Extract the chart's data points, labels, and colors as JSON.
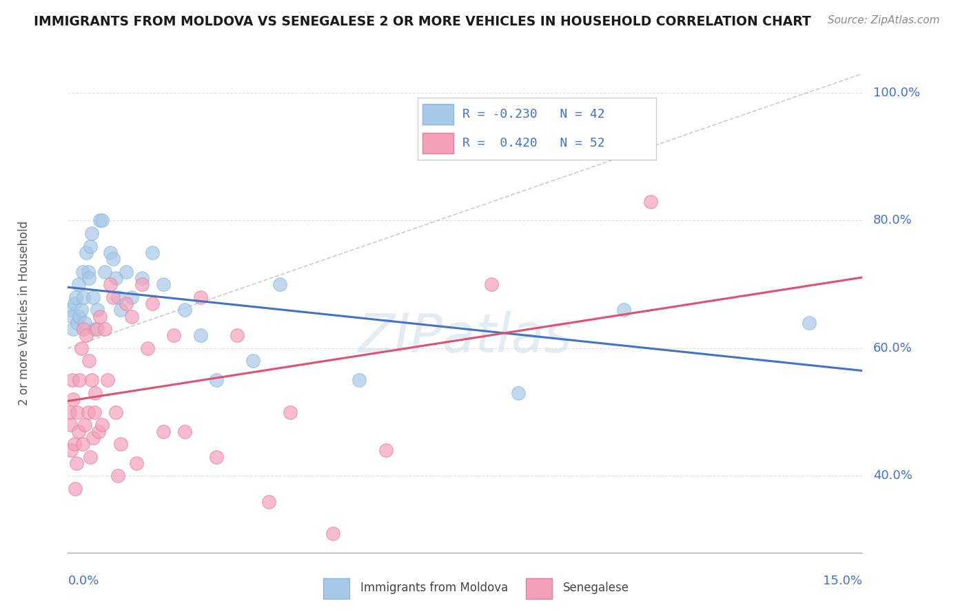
{
  "title": "IMMIGRANTS FROM MOLDOVA VS SENEGALESE 2 OR MORE VEHICLES IN HOUSEHOLD CORRELATION CHART",
  "source": "Source: ZipAtlas.com",
  "ylabel": "2 or more Vehicles in Household",
  "xlim": [
    0.0,
    15.0
  ],
  "ylim": [
    28.0,
    103.0
  ],
  "yticks_pct": [
    40.0,
    60.0,
    80.0,
    100.0
  ],
  "watermark_text": "ZIPatlas",
  "blue_R": -0.23,
  "blue_N": 42,
  "pink_R": 0.42,
  "pink_N": 52,
  "blue_scatter_color": "#a8c8e8",
  "blue_line_color": "#4472c4",
  "pink_scatter_color": "#f4a0b8",
  "pink_line_color": "#e05070",
  "ref_line_color": "#c8c8c8",
  "grid_color": "#e0e0e0",
  "axis_color": "#4472c4",
  "title_color": "#1a1a1a",
  "source_color": "#888888",
  "ylabel_color": "#555555",
  "blue_x": [
    0.05,
    0.08,
    0.1,
    0.12,
    0.15,
    0.18,
    0.2,
    0.22,
    0.25,
    0.28,
    0.3,
    0.32,
    0.35,
    0.38,
    0.4,
    0.42,
    0.45,
    0.48,
    0.5,
    0.55,
    0.6,
    0.65,
    0.7,
    0.8,
    0.85,
    0.9,
    0.95,
    1.0,
    1.1,
    1.2,
    1.4,
    1.6,
    1.8,
    2.2,
    2.5,
    2.8,
    3.5,
    4.0,
    5.5,
    8.5,
    10.5,
    14.0
  ],
  "blue_y": [
    66,
    65,
    63,
    67,
    68,
    64,
    70,
    65,
    66,
    72,
    68,
    64,
    75,
    72,
    71,
    76,
    78,
    68,
    63,
    66,
    80,
    80,
    72,
    75,
    74,
    71,
    68,
    66,
    72,
    68,
    71,
    75,
    70,
    66,
    62,
    55,
    58,
    70,
    55,
    53,
    66,
    64
  ],
  "pink_x": [
    0.03,
    0.05,
    0.06,
    0.08,
    0.1,
    0.12,
    0.14,
    0.16,
    0.18,
    0.2,
    0.22,
    0.25,
    0.28,
    0.3,
    0.32,
    0.35,
    0.38,
    0.4,
    0.42,
    0.45,
    0.48,
    0.5,
    0.52,
    0.55,
    0.58,
    0.6,
    0.65,
    0.7,
    0.75,
    0.8,
    0.85,
    0.9,
    0.95,
    1.0,
    1.1,
    1.2,
    1.3,
    1.4,
    1.5,
    1.6,
    1.8,
    2.0,
    2.2,
    2.5,
    2.8,
    3.2,
    3.8,
    4.2,
    5.0,
    6.0,
    8.0,
    11.0
  ],
  "pink_y": [
    50,
    48,
    44,
    55,
    52,
    45,
    38,
    42,
    50,
    47,
    55,
    60,
    45,
    63,
    48,
    62,
    50,
    58,
    43,
    55,
    46,
    50,
    53,
    63,
    47,
    65,
    48,
    63,
    55,
    70,
    68,
    50,
    40,
    45,
    67,
    65,
    42,
    70,
    60,
    67,
    47,
    62,
    47,
    68,
    43,
    62,
    36,
    50,
    31,
    44,
    70,
    83
  ]
}
